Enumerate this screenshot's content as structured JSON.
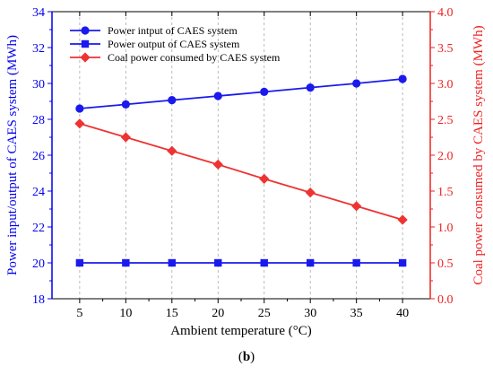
{
  "caption": {
    "open": "(",
    "letter": "b",
    "close": ")"
  },
  "colors": {
    "left_axis": "#0000ee",
    "right_axis": "#ee2222",
    "series_input": "#1a1aee",
    "series_output": "#1a1aee",
    "series_coal": "#ee3333",
    "grid": "#aaaaaa"
  },
  "chart_data": {
    "type": "line",
    "xlabel": "Ambient temperature (°C)",
    "ylabel_left": "Power input/output of CAES system (MWh)",
    "ylabel_right": "Coal power consumed by CAES system (MWh)",
    "x": [
      5,
      10,
      15,
      20,
      25,
      30,
      35,
      40
    ],
    "xlim": [
      2,
      43
    ],
    "x_ticks": [
      "5",
      "10",
      "15",
      "20",
      "25",
      "30",
      "35",
      "40"
    ],
    "ylim_left": [
      18,
      34
    ],
    "y_ticks_left": [
      "18",
      "20",
      "22",
      "24",
      "26",
      "28",
      "30",
      "32",
      "34"
    ],
    "ylim_right": [
      0,
      4
    ],
    "y_ticks_right": [
      "0.0",
      "0.5",
      "1.0",
      "1.5",
      "2.0",
      "2.5",
      "3.0",
      "3.5",
      "4.0"
    ],
    "grid": "vertical dashed",
    "legend_position": "top-left",
    "series": [
      {
        "name": "Power intput of CAES system",
        "axis": "left",
        "marker": "circle",
        "values": [
          28.6,
          28.83,
          29.07,
          29.3,
          29.53,
          29.77,
          30.0,
          30.25
        ]
      },
      {
        "name": "Power output of CAES system",
        "axis": "left",
        "marker": "square",
        "values": [
          20.0,
          20.0,
          20.0,
          20.0,
          20.0,
          20.0,
          20.0,
          20.0
        ]
      },
      {
        "name": "Coal power consumed by CAES system",
        "axis": "right",
        "marker": "diamond",
        "values": [
          2.44,
          2.25,
          2.06,
          1.87,
          1.67,
          1.48,
          1.29,
          1.1
        ]
      }
    ]
  }
}
